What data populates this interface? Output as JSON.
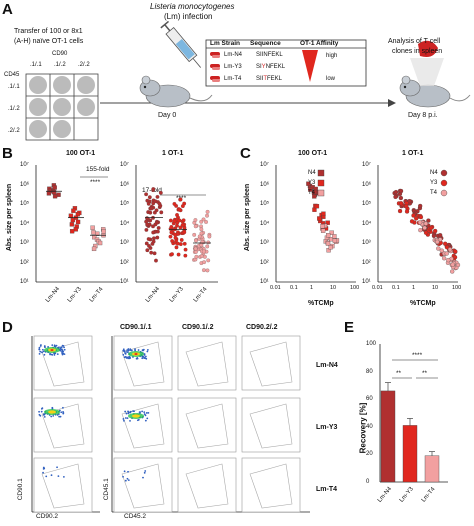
{
  "panels": {
    "a": "A",
    "b": "B",
    "c": "C",
    "d": "D",
    "e": "E"
  },
  "panel_a": {
    "transfer_line1": "Transfer of 100 or 8x1",
    "transfer_line2": "(A-H) naïve OT-1 cells",
    "cd90_label": "CD90",
    "col_labels": [
      ".1/.1",
      ".1/.2",
      ".2/.2"
    ],
    "cd45_label": "CD45",
    "row_labels": [
      ".1/.1",
      ".1/.2",
      ".2/.2"
    ],
    "grid_letters": [
      "A",
      "D",
      "G",
      "B",
      "E",
      "H",
      "C",
      "F",
      ""
    ],
    "infection_line1": "Listeria monocytogenes",
    "infection_line2": "(Lm) infection",
    "day0": "Day 0",
    "table_headers": [
      "Lm Strain",
      "Sequence",
      "OT-1 Affinity"
    ],
    "strains": [
      "Lm-N4",
      "Lm-Y3",
      "Lm-T4"
    ],
    "sequences": [
      {
        "pre": "SII",
        "mut": "N",
        "post": "FEKL",
        "color": "#111111"
      },
      {
        "pre": "SI",
        "mut": "Y",
        "post": "NFEKL",
        "color": "#d62728"
      },
      {
        "pre": "SII",
        "mut": "T",
        "post": "FEKL",
        "color": "#d62728"
      }
    ],
    "affinity_high": "high",
    "affinity_low": "low",
    "analysis_line1": "Analysis of T cell",
    "analysis_line2": "clones in spleen",
    "day8": "Day 8 p.i."
  },
  "panel_b": {
    "ylabel": "Abs. size per spleen",
    "left_title": "100 OT-1",
    "right_title": "1 OT-1",
    "left_fold": "155-fold",
    "right_fold": "17-fold",
    "sig": "****",
    "y_ticks": [
      "10⁷",
      "10⁶",
      "10⁵",
      "10⁴",
      "10³",
      "10²",
      "10¹"
    ],
    "categories": [
      "Lm-N4",
      "Lm-Y3",
      "Lm-T4"
    ]
  },
  "panel_c": {
    "ylabel": "Abs. size per spleen",
    "left_title": "100 OT-1",
    "right_title": "1 OT-1",
    "xlabel": "%TCMp",
    "y_ticks": [
      "10⁷",
      "10⁶",
      "10⁵",
      "10⁴",
      "10³",
      "10²",
      "10¹"
    ],
    "x_ticks": [
      "0.01",
      "0.1",
      "1",
      "10",
      "100"
    ],
    "legend": [
      "N4",
      "Y3",
      "T4"
    ]
  },
  "panel_d": {
    "col_titles": [
      "CD90.1/.1",
      "CD90.1/.2",
      "CD90.2/.2"
    ],
    "row_labels": [
      "Lm-N4",
      "Lm-Y3",
      "Lm-T4"
    ],
    "y_axis_left": "CD90.1",
    "x_axis_left": "CD90.2",
    "y_axis_right": "CD45.1",
    "x_axis_right": "CD45.2"
  },
  "panel_e": {
    "ylabel": "Recovery [%]",
    "sig_top": "****",
    "sig_left": "**",
    "sig_right": "**"
  },
  "colors": {
    "n4": "#b03030",
    "y3": "#e0271e",
    "t4": "#f2a0a0",
    "dark": "#222222"
  },
  "chart_data": [
    {
      "type": "scatter",
      "title": "100 OT-1",
      "ylabel": "Abs. size per spleen",
      "categories": [
        "Lm-N4",
        "Lm-Y3",
        "Lm-T4"
      ],
      "y_scale": "log",
      "ylim": [
        10,
        10000000
      ],
      "series": [
        {
          "name": "Lm-N4",
          "values": [
            900000,
            700000,
            600000,
            500000,
            450000,
            400000,
            350000,
            300000,
            250000
          ]
        },
        {
          "name": "Lm-Y3",
          "values": [
            60000,
            45000,
            35000,
            30000,
            25000,
            20000,
            15000,
            12000,
            9000,
            7000,
            5000,
            4000
          ]
        },
        {
          "name": "Lm-T4",
          "values": [
            6000,
            5000,
            4000,
            3500,
            3000,
            2500,
            2000,
            1500,
            1200,
            1000,
            700,
            500
          ]
        }
      ],
      "annotation": "155-fold ****"
    },
    {
      "type": "scatter",
      "title": "1 OT-1",
      "ylabel": "Abs. size per spleen",
      "categories": [
        "Lm-N4",
        "Lm-Y3",
        "Lm-T4"
      ],
      "y_scale": "log",
      "ylim": [
        10,
        10000000
      ],
      "series": [
        {
          "name": "Lm-N4",
          "median": 20000,
          "range": [
            100,
            1000000
          ]
        },
        {
          "name": "Lm-Y3",
          "median": 5000,
          "range": [
            100,
            300000
          ]
        },
        {
          "name": "Lm-T4",
          "median": 1000,
          "range": [
            30,
            60000
          ]
        }
      ],
      "annotation": "17-fold ****"
    },
    {
      "type": "scatter",
      "title": "100 OT-1",
      "xlabel": "%TCMp",
      "ylabel": "Abs. size per spleen",
      "x_scale": "log",
      "y_scale": "log",
      "xlim": [
        0.01,
        100
      ],
      "ylim": [
        10,
        10000000
      ],
      "series": [
        {
          "name": "N4",
          "points": [
            [
              0.5,
              900000
            ],
            [
              0.7,
              600000
            ],
            [
              1,
              500000
            ],
            [
              0.8,
              400000
            ],
            [
              1.2,
              300000
            ]
          ]
        },
        {
          "name": "Y3",
          "points": [
            [
              1,
              60000
            ],
            [
              2,
              30000
            ],
            [
              1.5,
              20000
            ],
            [
              3,
              10000
            ],
            [
              2.5,
              7000
            ]
          ]
        },
        {
          "name": "T4",
          "points": [
            [
              3,
              6000
            ],
            [
              5,
              3000
            ],
            [
              8,
              2000
            ],
            [
              4,
              1500
            ],
            [
              10,
              1000
            ],
            [
              6,
              600
            ]
          ]
        }
      ]
    },
    {
      "type": "scatter",
      "title": "1 OT-1",
      "xlabel": "%TCMp",
      "ylabel": "Abs. size per spleen",
      "x_scale": "log",
      "y_scale": "log",
      "xlim": [
        0.01,
        100
      ],
      "ylim": [
        10,
        10000000
      ],
      "series": [
        {
          "name": "N4",
          "points": [
            [
              0.1,
              300000
            ],
            [
              0.3,
              100000
            ],
            [
              1,
              50000
            ],
            [
              3,
              10000
            ],
            [
              10,
              2000
            ],
            [
              30,
              500
            ]
          ]
        },
        {
          "name": "Y3",
          "points": [
            [
              0.2,
              80000
            ],
            [
              1,
              20000
            ],
            [
              5,
              5000
            ],
            [
              20,
              1000
            ],
            [
              50,
              300
            ]
          ]
        },
        {
          "name": "T4",
          "points": [
            [
              2,
              8000
            ],
            [
              10,
              1000
            ],
            [
              30,
              300
            ],
            [
              60,
              100
            ],
            [
              80,
              80
            ]
          ]
        }
      ]
    },
    {
      "type": "bar",
      "ylabel": "Recovery [%]",
      "categories": [
        "Lm-N4",
        "Lm-Y3",
        "Lm-T4"
      ],
      "values": [
        66,
        41,
        19
      ],
      "errors": [
        6,
        5,
        3
      ],
      "ylim": [
        0,
        100
      ],
      "y_ticks": [
        0,
        20,
        40,
        60,
        80,
        100
      ]
    }
  ]
}
